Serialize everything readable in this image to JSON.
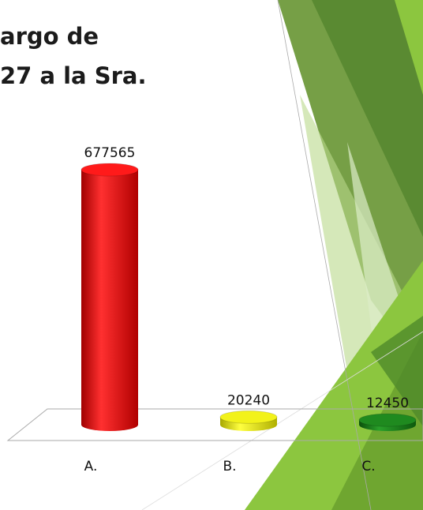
{
  "chart_data": {
    "type": "bar",
    "title_lines": [
      "argo de",
      "27 a la Sra."
    ],
    "categories": [
      "A.",
      "B.",
      "C."
    ],
    "values": [
      677565,
      20240,
      12450
    ],
    "colors": [
      "#ff1a1a",
      "#f2f21a",
      "#1f8a1f"
    ]
  }
}
